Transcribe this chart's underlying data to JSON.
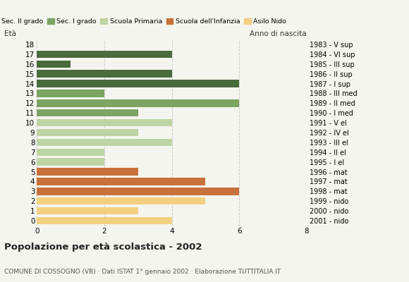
{
  "ages": [
    18,
    17,
    16,
    15,
    14,
    13,
    12,
    11,
    10,
    9,
    8,
    7,
    6,
    5,
    4,
    3,
    2,
    1,
    0
  ],
  "values": [
    0,
    4,
    1,
    4,
    6,
    2,
    6,
    3,
    4,
    3,
    4,
    2,
    2,
    3,
    5,
    6,
    5,
    3,
    4
  ],
  "categories": [
    "Sec. II grado",
    "Sec. II grado",
    "Sec. II grado",
    "Sec. II grado",
    "Sec. II grado",
    "Sec. I grado",
    "Sec. I grado",
    "Sec. I grado",
    "Scuola Primaria",
    "Scuola Primaria",
    "Scuola Primaria",
    "Scuola Primaria",
    "Scuola Primaria",
    "Scuola dell'Infanzia",
    "Scuola dell'Infanzia",
    "Scuola dell'Infanzia",
    "Asilo Nido",
    "Asilo Nido",
    "Asilo Nido"
  ],
  "right_labels": [
    "1983 - V sup",
    "1984 - VI sup",
    "1985 - III sup",
    "1986 - II sup",
    "1987 - I sup",
    "1988 - III med",
    "1989 - II med",
    "1990 - I med",
    "1991 - V el",
    "1992 - IV el",
    "1993 - III el",
    "1994 - II el",
    "1995 - I el",
    "1996 - mat",
    "1997 - mat",
    "1998 - mat",
    "1999 - nido",
    "2000 - nido",
    "2001 - nido"
  ],
  "colors": {
    "Sec. II grado": "#4a6b3c",
    "Sec. I grado": "#7da462",
    "Scuola Primaria": "#bdd4a4",
    "Scuola dell'Infanzia": "#c8713a",
    "Asilo Nido": "#f2d080"
  },
  "legend_order": [
    "Sec. II grado",
    "Sec. I grado",
    "Scuola Primaria",
    "Scuola dell'Infanzia",
    "Asilo Nido"
  ],
  "title": "Popolazione per età scolastica - 2002",
  "subtitle": "COMUNE DI COSSOGNO (VB) · Dati ISTAT 1° gennaio 2002 · Elaborazione TUTTITALIA.IT",
  "label_left": "Età",
  "label_right": "Anno di nascita",
  "xlim": [
    0,
    8
  ],
  "xticks": [
    0,
    2,
    4,
    6,
    8
  ],
  "background_color": "#f5f5f0",
  "grid_color": "#cccccc"
}
